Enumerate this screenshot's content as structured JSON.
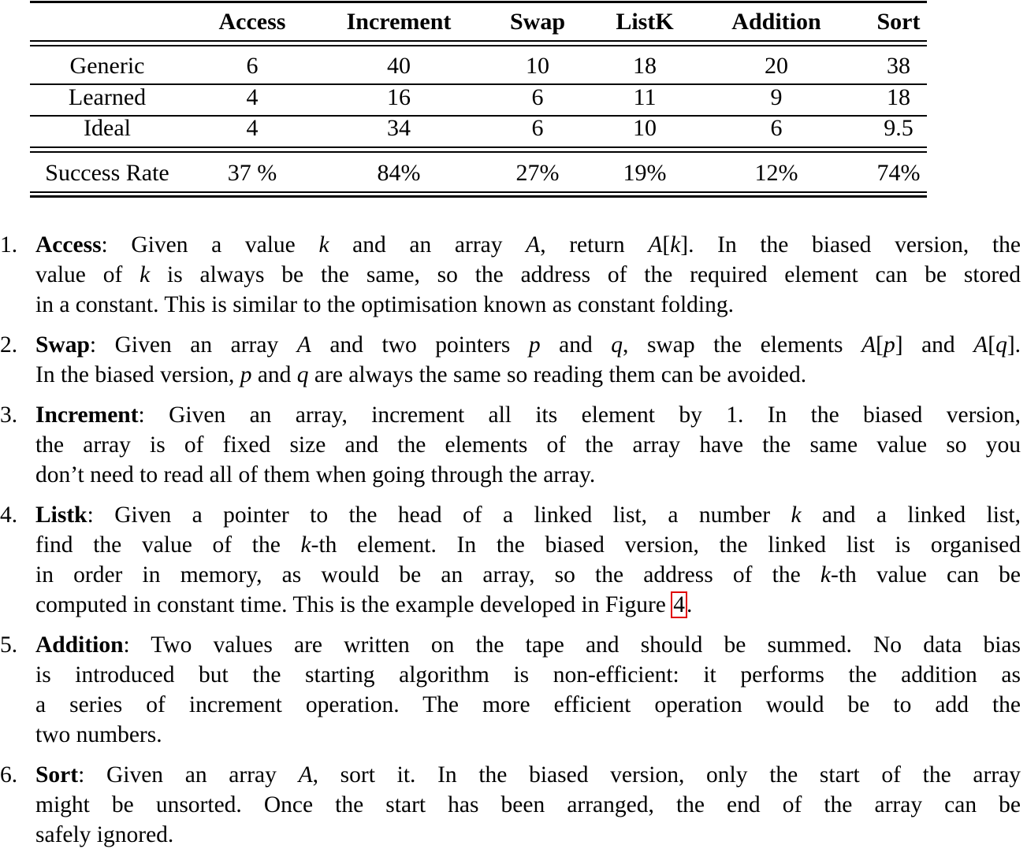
{
  "table": {
    "headers": [
      "",
      "Access",
      "Increment",
      "Swap",
      "ListK",
      "Addition",
      "Sort"
    ],
    "rows": [
      [
        "Generic",
        "6",
        "40",
        "10",
        "18",
        "20",
        "38"
      ],
      [
        "Learned",
        "4",
        "16",
        "6",
        "11",
        "9",
        "18"
      ],
      [
        "Ideal",
        "4",
        "34",
        "6",
        "10",
        "6",
        "9.5"
      ]
    ],
    "footer": [
      "Success Rate",
      "37 %",
      "84%",
      "27%",
      "19%",
      "12%",
      "74%"
    ]
  },
  "list": [
    {
      "num": "1.",
      "lines": [
        [
          {
            "b": "Access"
          },
          {
            "t": ": Given a value "
          },
          {
            "i": "k"
          },
          {
            "t": " and an array "
          },
          {
            "i": "A"
          },
          {
            "t": ", return "
          },
          {
            "i": "A"
          },
          {
            "t": "["
          },
          {
            "i": "k"
          },
          {
            "t": "]. In the biased version, the"
          }
        ],
        [
          {
            "t": "value of "
          },
          {
            "i": "k"
          },
          {
            "t": " is always be the same, so the address of the required element can be stored"
          }
        ],
        [
          {
            "t": "in a constant. This is similar to the optimisation known as constant folding."
          }
        ]
      ]
    },
    {
      "num": "2.",
      "lines": [
        [
          {
            "b": "Swap"
          },
          {
            "t": ": Given an array "
          },
          {
            "i": "A"
          },
          {
            "t": " and two pointers "
          },
          {
            "i": "p"
          },
          {
            "t": " and "
          },
          {
            "i": "q"
          },
          {
            "t": ", swap the elements "
          },
          {
            "i": "A"
          },
          {
            "t": "["
          },
          {
            "i": "p"
          },
          {
            "t": "] and "
          },
          {
            "i": "A"
          },
          {
            "t": "["
          },
          {
            "i": "q"
          },
          {
            "t": "]."
          }
        ],
        [
          {
            "t": "In the biased version, "
          },
          {
            "i": "p"
          },
          {
            "t": " and "
          },
          {
            "i": "q"
          },
          {
            "t": " are always the same so reading them can be avoided."
          }
        ]
      ]
    },
    {
      "num": "3.",
      "lines": [
        [
          {
            "b": "Increment"
          },
          {
            "t": ": Given an array, increment all its element by 1. In the biased version,"
          }
        ],
        [
          {
            "t": "the array is of fixed size and the elements of the array have the same value so you"
          }
        ],
        [
          {
            "t": "don’t need to read all of them when going through the array."
          }
        ]
      ]
    },
    {
      "num": "4.",
      "lines": [
        [
          {
            "b": "Listk"
          },
          {
            "t": ": Given a pointer to the head of a linked list, a number "
          },
          {
            "i": "k"
          },
          {
            "t": " and a linked list,"
          }
        ],
        [
          {
            "t": "find the value of the "
          },
          {
            "i": "k"
          },
          {
            "t": "-th element. In the biased version, the linked list is organised"
          }
        ],
        [
          {
            "t": "in order in memory, as would be an array, so the address of the "
          },
          {
            "i": "k"
          },
          {
            "t": "-th value can be"
          }
        ],
        [
          {
            "t": "computed in constant time. This is the example developed in Figure "
          },
          {
            "ref": "4"
          },
          {
            "t": "."
          }
        ]
      ]
    },
    {
      "num": "5.",
      "lines": [
        [
          {
            "b": "Addition"
          },
          {
            "t": ": Two values are written on the tape and should be summed. No data bias"
          }
        ],
        [
          {
            "t": "is introduced but the starting algorithm is non-efficient: it performs the addition as"
          }
        ],
        [
          {
            "t": "a series of increment operation. The more efficient operation would be to add the"
          }
        ],
        [
          {
            "t": "two numbers."
          }
        ]
      ]
    },
    {
      "num": "6.",
      "lines": [
        [
          {
            "b": "Sort"
          },
          {
            "t": ": Given an array "
          },
          {
            "i": "A"
          },
          {
            "t": ", sort it. In the biased version, only the start of the array"
          }
        ],
        [
          {
            "t": "might be unsorted. Once the start has been arranged, the end of the array can be"
          }
        ],
        [
          {
            "t": "safely ignored."
          }
        ]
      ]
    }
  ],
  "colors": {
    "link_box": "#e00000"
  }
}
